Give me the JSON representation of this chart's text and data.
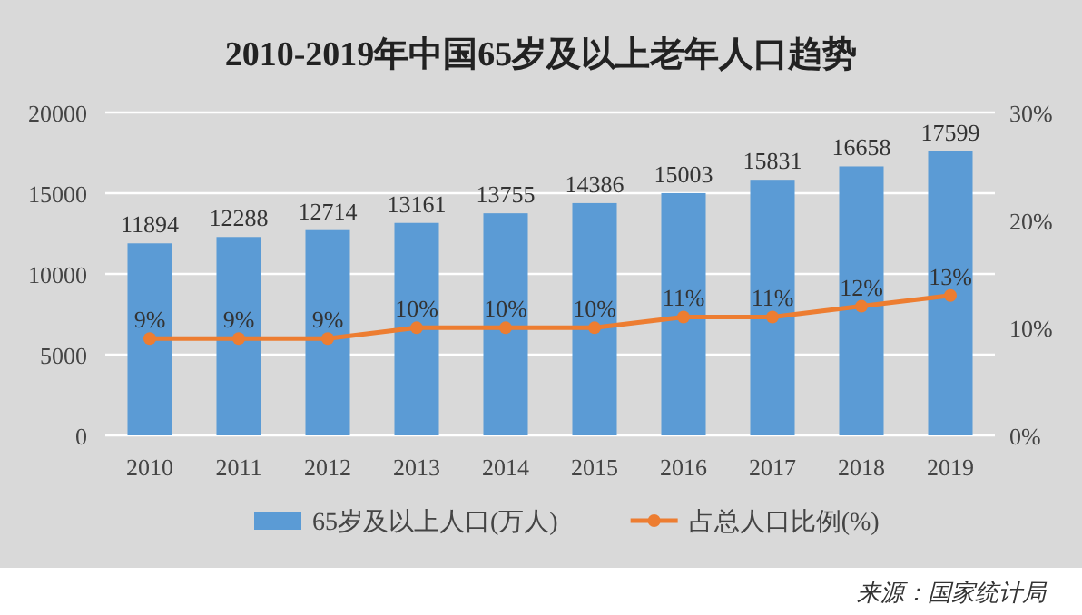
{
  "chart_data": {
    "type": "bar",
    "title": "2010-2019年中国65岁及以上老年人口趋势",
    "categories": [
      "2010",
      "2011",
      "2012",
      "2013",
      "2014",
      "2015",
      "2016",
      "2017",
      "2018",
      "2019"
    ],
    "series": [
      {
        "name": "65岁及以上人口(万人)",
        "color": "#5b9bd5",
        "values": [
          11894,
          12288,
          12714,
          13161,
          13755,
          14386,
          15003,
          15831,
          16658,
          17599
        ]
      },
      {
        "name": "占总人口比例(%)",
        "type": "line",
        "axis": "y2",
        "color": "#ed7d31",
        "marker": "circle",
        "values": [
          9,
          9,
          9,
          10,
          10,
          10,
          11,
          11,
          12,
          13
        ],
        "value_labels": [
          "9%",
          "9%",
          "9%",
          "10%",
          "10%",
          "10%",
          "11%",
          "11%",
          "12%",
          "13%"
        ]
      }
    ],
    "ylim": [
      0,
      20000
    ],
    "yticks": [
      0,
      5000,
      10000,
      15000,
      20000
    ],
    "y2lim": [
      0,
      30
    ],
    "y2ticks": [
      {
        "value": 0,
        "label": "0%"
      },
      {
        "value": 10,
        "label": "10%"
      },
      {
        "value": 20,
        "label": "20%"
      },
      {
        "value": 30,
        "label": "30%"
      }
    ],
    "data_labels": true,
    "grid": "y",
    "legend": "bottom",
    "annotations": [
      "来源：国家统计局"
    ]
  }
}
